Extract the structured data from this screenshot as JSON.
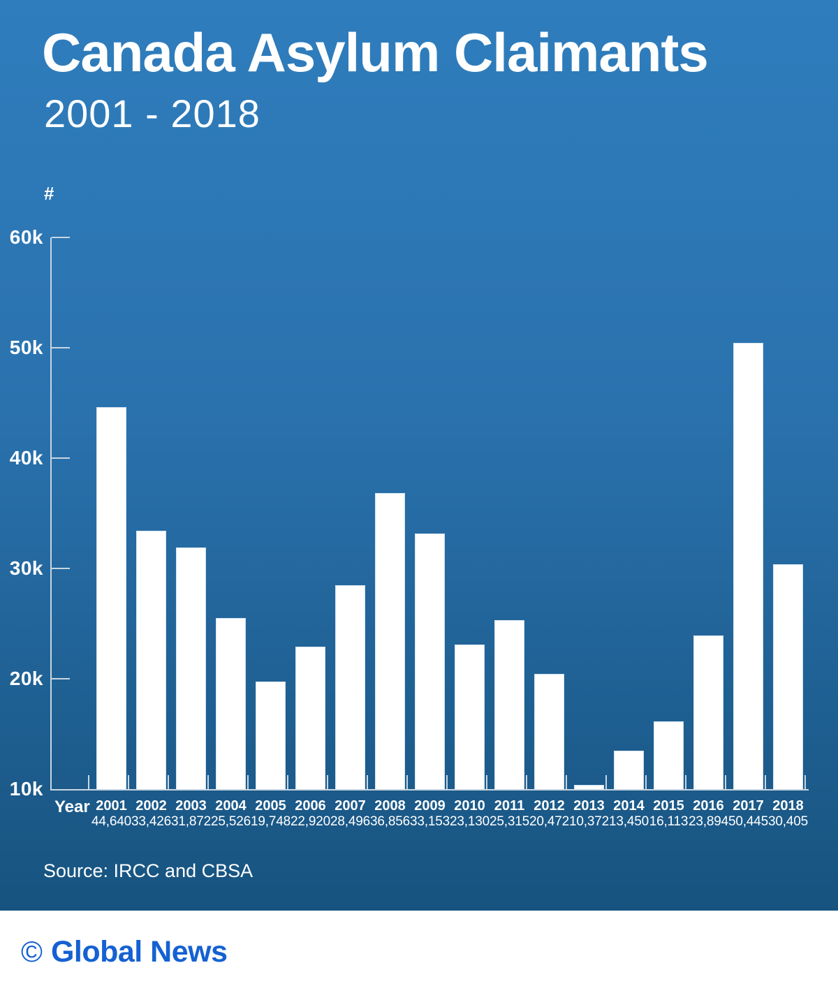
{
  "header": {
    "title": "Canada Asylum Claimants",
    "subtitle": "2001 - 2018"
  },
  "chart_data": {
    "type": "bar",
    "title": "Canada Asylum Claimants 2001 - 2018",
    "xlabel": "Year",
    "ylabel": "#",
    "ylim": [
      10000,
      60000
    ],
    "grid": false,
    "legend": "none",
    "y_ticks": [
      {
        "label": "60k",
        "value": 60000
      },
      {
        "label": "50k",
        "value": 50000
      },
      {
        "label": "40k",
        "value": 40000
      },
      {
        "label": "30k",
        "value": 30000
      },
      {
        "label": "20k",
        "value": 20000
      },
      {
        "label": "10k",
        "value": 10000
      }
    ],
    "categories": [
      "2001",
      "2002",
      "2003",
      "2004",
      "2005",
      "2006",
      "2007",
      "2008",
      "2009",
      "2010",
      "2011",
      "2012",
      "2013",
      "2014",
      "2015",
      "2016",
      "2017",
      "2018"
    ],
    "values": [
      44640,
      33426,
      31872,
      25526,
      19748,
      22920,
      28496,
      36856,
      33153,
      23130,
      25315,
      20472,
      10372,
      13450,
      16113,
      23894,
      50445,
      30405
    ],
    "value_labels": [
      "44,640",
      "33,426",
      "31,872",
      "25,526",
      "19,748",
      "22,920",
      "28,496",
      "36,856",
      "33,153",
      "23,130",
      "25,315",
      "20,472",
      "10,372",
      "13,450",
      "16,113",
      "23,894",
      "50,445",
      "30,405"
    ]
  },
  "source": {
    "label": "Source: IRCC and CBSA"
  },
  "footer": {
    "symbol": "©",
    "brand": "Global News"
  },
  "colors": {
    "background_top": "#2f7dbd",
    "background_bottom": "#17537f",
    "axis": "#c8d6e3",
    "bar": "#ffffff",
    "text": "#ffffff",
    "brand_blue": "#1561d2"
  }
}
